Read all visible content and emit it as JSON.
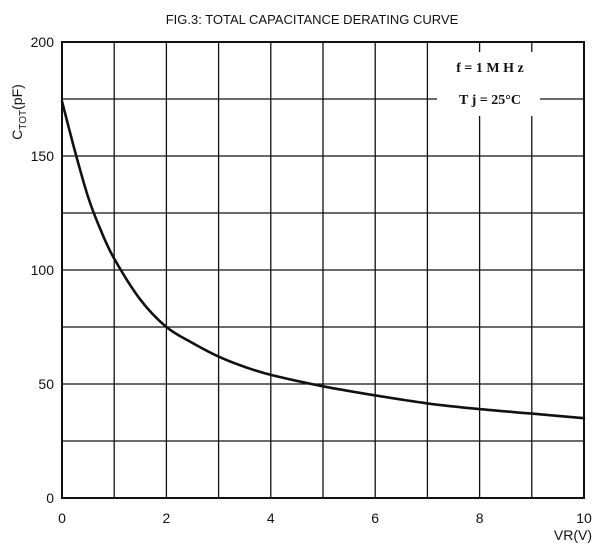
{
  "chart_data": {
    "type": "line",
    "title": "FIG.3: TOTAL CAPACITANCE  DERATING CURVE",
    "xlabel": "VR(V)",
    "ylabel": "C",
    "ylabel_sub": "TOT",
    "ylabel_unit": "(pF)",
    "xlim": [
      0,
      10
    ],
    "ylim": [
      0,
      200
    ],
    "x_ticks": [
      "0",
      "2",
      "4",
      "6",
      "8",
      "10"
    ],
    "y_ticks": [
      "0",
      "50",
      "100",
      "150",
      "200"
    ],
    "grid": true,
    "annotations": [
      "f = 1 M H z",
      "T j  =  25°C"
    ],
    "series": [
      {
        "x": [
          0,
          0.25,
          0.5,
          0.75,
          1,
          1.5,
          2,
          2.5,
          3,
          3.5,
          4,
          5,
          6,
          7,
          8,
          9,
          10
        ],
        "values": [
          174,
          152,
          132,
          117,
          105,
          87,
          75,
          68,
          62,
          57.5,
          54,
          49,
          45,
          41.5,
          39,
          37,
          35
        ]
      }
    ]
  }
}
